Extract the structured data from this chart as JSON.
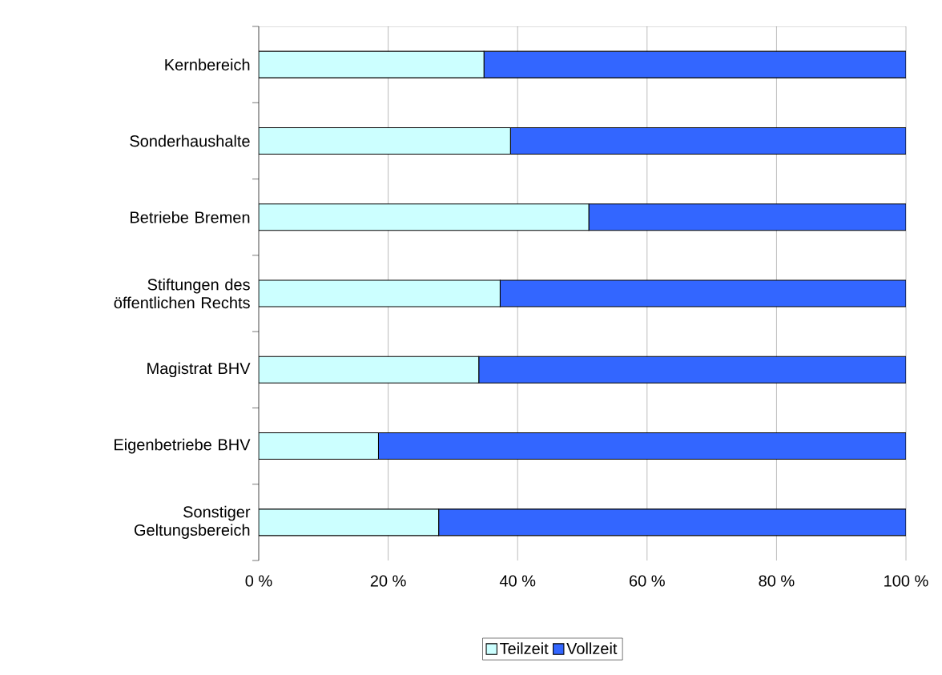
{
  "chart_data": {
    "type": "bar",
    "orientation": "horizontal",
    "stacked": true,
    "categories": [
      "Kernbereich",
      "Sonderhaushalte",
      "Betriebe Bremen",
      "Stiftungen des öffentlichen Rechts",
      "Magistrat BHV",
      "Eigenbetriebe BHV",
      "Sonstiger Geltungsbereich"
    ],
    "series": [
      {
        "name": "Teilzeit",
        "color": "#ccffff",
        "values": [
          34.8,
          38.9,
          51.0,
          37.3,
          34.0,
          18.5,
          27.8
        ]
      },
      {
        "name": "Vollzeit",
        "color": "#3366ff",
        "values": [
          65.2,
          61.1,
          49.0,
          62.7,
          66.0,
          81.5,
          72.2
        ]
      }
    ],
    "xlim": [
      0,
      100
    ],
    "xticks": [
      {
        "value": 0,
        "label": "0 %"
      },
      {
        "value": 20,
        "label": "20 %"
      },
      {
        "value": 40,
        "label": "40 %"
      },
      {
        "value": 60,
        "label": "60 %"
      },
      {
        "value": 80,
        "label": "80 %"
      },
      {
        "value": 100,
        "label": "100 %"
      }
    ],
    "grid": "x",
    "legend": "bottom"
  }
}
